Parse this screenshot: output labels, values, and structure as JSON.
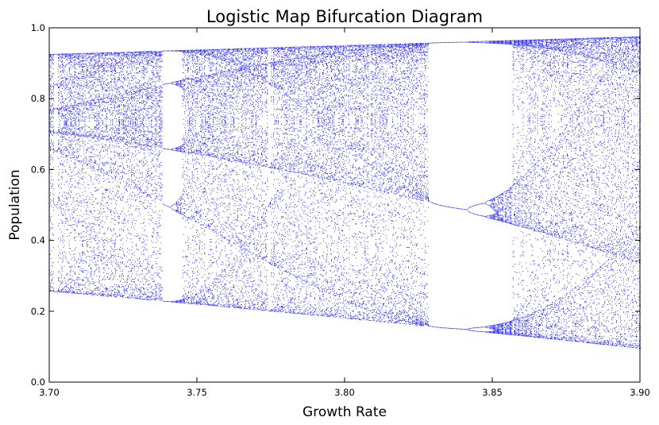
{
  "chart_data": {
    "type": "scatter",
    "title": "Logistic Map Bifurcation Diagram",
    "xlabel": "Growth Rate",
    "ylabel": "Population",
    "xlim": [
      3.7,
      3.9
    ],
    "ylim": [
      0.0,
      1.0
    ],
    "xticks": [
      "3.70",
      "3.75",
      "3.80",
      "3.85",
      "3.90"
    ],
    "yticks": [
      "0.0",
      "0.2",
      "0.4",
      "0.6",
      "0.8",
      "1.0"
    ],
    "grid": false,
    "legend": "none",
    "series": [
      {
        "map": "x_next = r * x * (1 - x)",
        "r_range": [
          3.7,
          3.9
        ],
        "color": "#0000ff",
        "marker": "dot"
      }
    ]
  }
}
